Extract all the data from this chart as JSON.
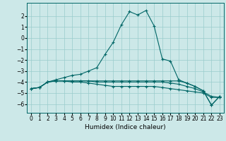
{
  "background_color": "#cce8e8",
  "grid_color": "#99cccc",
  "line_color": "#006666",
  "xlabel": "Humidex (Indice chaleur)",
  "xlabel_fontsize": 6.5,
  "tick_fontsize": 5.5,
  "xlim": [
    -0.5,
    23.5
  ],
  "ylim": [
    -6.8,
    3.2
  ],
  "yticks": [
    -6,
    -5,
    -4,
    -3,
    -2,
    -1,
    0,
    1,
    2
  ],
  "xticks": [
    0,
    1,
    2,
    3,
    4,
    5,
    6,
    7,
    8,
    9,
    10,
    11,
    12,
    13,
    14,
    15,
    16,
    17,
    18,
    19,
    20,
    21,
    22,
    23
  ],
  "curves": [
    {
      "x": [
        0,
        1,
        2,
        3,
        4,
        5,
        6,
        7,
        8,
        9,
        10,
        11,
        12,
        13,
        14,
        15,
        16,
        17,
        18,
        19,
        20,
        21,
        22,
        23
      ],
      "y": [
        -4.6,
        -4.5,
        -4.0,
        -3.8,
        -3.6,
        -3.4,
        -3.3,
        -3.0,
        -2.7,
        -1.5,
        -0.4,
        1.2,
        2.4,
        2.1,
        2.5,
        1.1,
        -1.9,
        -2.1,
        -3.8,
        -4.1,
        -4.4,
        -4.8,
        -6.1,
        -5.3
      ]
    },
    {
      "x": [
        0,
        1,
        2,
        3,
        4,
        5,
        6,
        7,
        8,
        9,
        10,
        11,
        12,
        13,
        14,
        15,
        16,
        17,
        18,
        19,
        20,
        21,
        22,
        23
      ],
      "y": [
        -4.6,
        -4.5,
        -4.0,
        -3.9,
        -3.9,
        -3.9,
        -3.9,
        -3.9,
        -3.9,
        -3.9,
        -3.9,
        -3.9,
        -3.9,
        -3.9,
        -3.9,
        -3.9,
        -3.9,
        -3.9,
        -3.9,
        -4.1,
        -4.4,
        -4.8,
        -6.1,
        -5.3
      ]
    },
    {
      "x": [
        0,
        1,
        2,
        3,
        4,
        5,
        6,
        7,
        8,
        9,
        10,
        11,
        12,
        13,
        14,
        15,
        16,
        17,
        18,
        19,
        20,
        21,
        22,
        23
      ],
      "y": [
        -4.6,
        -4.5,
        -4.0,
        -3.9,
        -3.9,
        -3.9,
        -3.9,
        -3.9,
        -4.0,
        -4.0,
        -4.0,
        -4.0,
        -4.0,
        -4.0,
        -4.0,
        -4.0,
        -4.0,
        -4.1,
        -4.2,
        -4.4,
        -4.6,
        -4.9,
        -5.3,
        -5.4
      ]
    },
    {
      "x": [
        0,
        1,
        2,
        3,
        4,
        5,
        6,
        7,
        8,
        9,
        10,
        11,
        12,
        13,
        14,
        15,
        16,
        17,
        18,
        19,
        20,
        21,
        22,
        23
      ],
      "y": [
        -4.6,
        -4.5,
        -4.0,
        -3.9,
        -3.9,
        -4.0,
        -4.0,
        -4.1,
        -4.2,
        -4.3,
        -4.4,
        -4.4,
        -4.4,
        -4.4,
        -4.4,
        -4.4,
        -4.5,
        -4.6,
        -4.7,
        -4.8,
        -4.9,
        -5.0,
        -5.4,
        -5.4
      ]
    }
  ]
}
